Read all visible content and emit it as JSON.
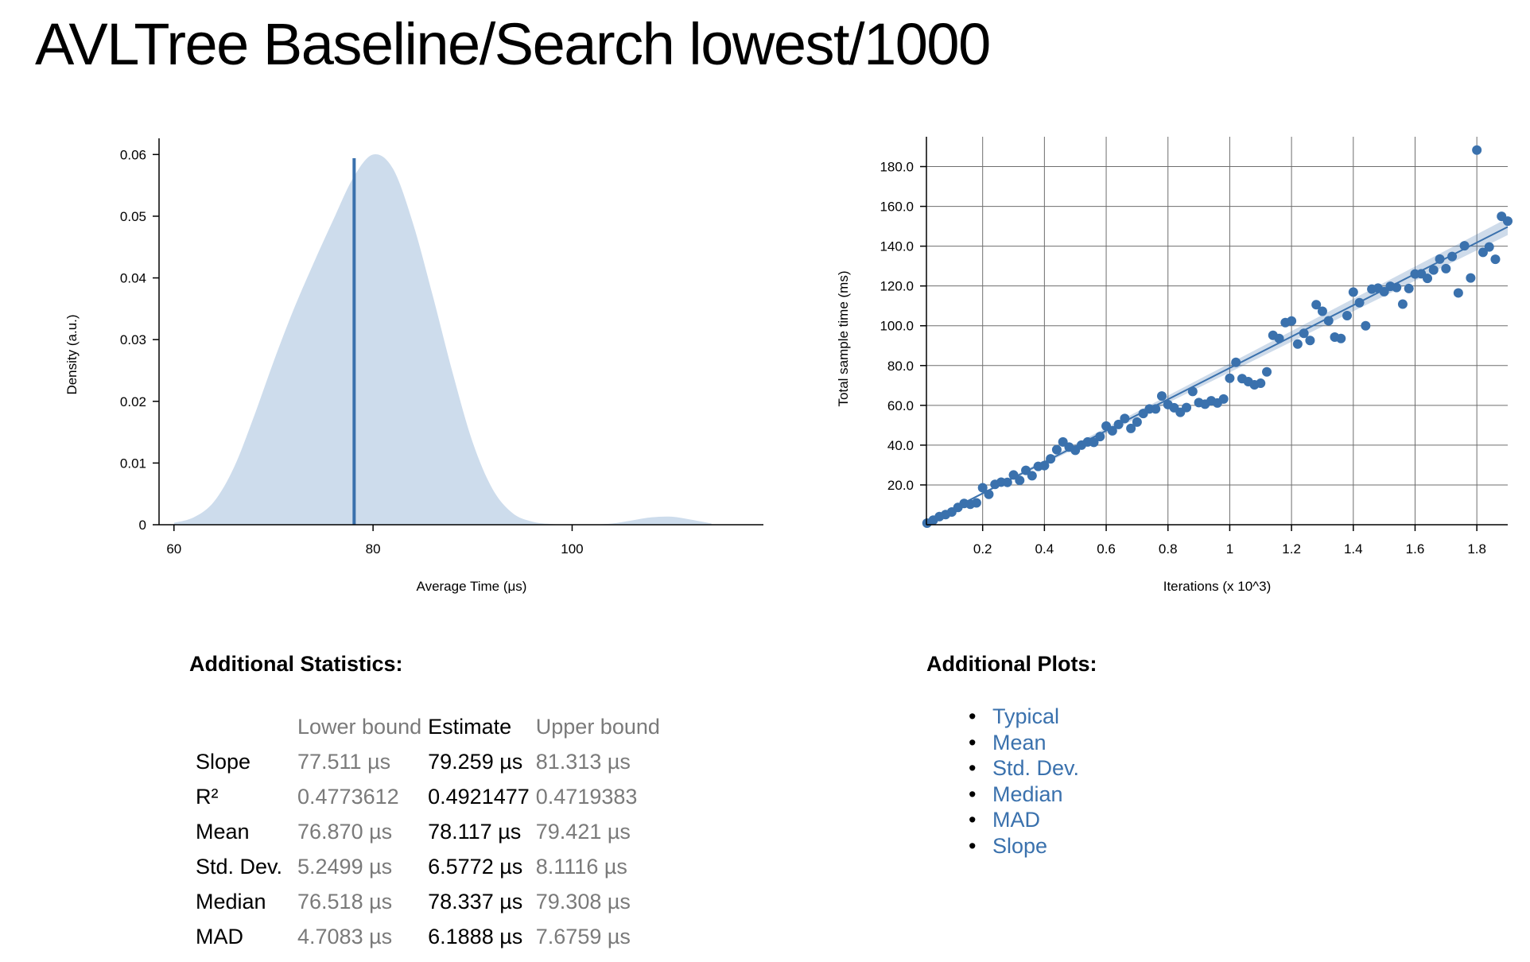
{
  "page": {
    "title": "AVLTree Baseline/Search lowest/1000"
  },
  "colors": {
    "accent": "#3a71ad",
    "density_fill": "#cddcec",
    "grid": "#6e6e6e",
    "muted_text": "#7a7a7a"
  },
  "chart_data": [
    {
      "type": "area",
      "title": "",
      "xlabel": "Average Time (μs)",
      "ylabel": "Density (a.u.)",
      "xlim": [
        58.5,
        116.5
      ],
      "ylim": [
        0,
        0.0603
      ],
      "x_ticks": [
        60,
        80,
        100
      ],
      "y_ticks": [
        0,
        0.01,
        0.02,
        0.03,
        0.04,
        0.05,
        0.06
      ],
      "y_tick_labels": [
        "0",
        "0.01",
        "0.02",
        "0.03",
        "0.04",
        "0.05",
        "0.06"
      ],
      "x": [
        60,
        62,
        64,
        66,
        68,
        70,
        72,
        74,
        76,
        78,
        80,
        82,
        84,
        86,
        88,
        90,
        92,
        94,
        96,
        98,
        100,
        102,
        104,
        106,
        108,
        110,
        112,
        114
      ],
      "y": [
        0.0003,
        0.0012,
        0.0037,
        0.0092,
        0.0174,
        0.0264,
        0.0348,
        0.0423,
        0.0494,
        0.0562,
        0.06,
        0.0577,
        0.0489,
        0.0371,
        0.0246,
        0.0134,
        0.0058,
        0.0019,
        0.0005,
        0.0001,
        0,
        0,
        0.0002,
        0.0007,
        0.0012,
        0.0013,
        0.0008,
        0.0002
      ],
      "mean_line": {
        "x": 78.1,
        "y": 0.0594
      },
      "grid": false
    },
    {
      "type": "scatter",
      "title": "",
      "xlabel": "Iterations (x 10^3)",
      "ylabel": "Total sample time (ms)",
      "xlim": [
        0.018,
        1.9
      ],
      "ylim": [
        0,
        187
      ],
      "x_ticks": [
        0.2,
        0.4,
        0.6,
        0.8,
        1.0,
        1.2,
        1.4,
        1.6,
        1.8
      ],
      "x_tick_labels": [
        "0.2",
        "0.4",
        "0.6",
        "0.8",
        "1",
        "1.2",
        "1.4",
        "1.6",
        "1.8"
      ],
      "y_ticks": [
        20,
        40,
        60,
        80,
        100,
        120,
        140,
        160,
        180
      ],
      "y_tick_labels": [
        "20.0",
        "40.0",
        "60.0",
        "80.0",
        "100.0",
        "120.0",
        "140.0",
        "160.0",
        "180.0"
      ],
      "grid": true,
      "points": [
        [
          0.02,
          0.8
        ],
        [
          0.04,
          2.3
        ],
        [
          0.06,
          4.1
        ],
        [
          0.08,
          5.1
        ],
        [
          0.1,
          6.4
        ],
        [
          0.12,
          8.7
        ],
        [
          0.14,
          10.7
        ],
        [
          0.16,
          10.3
        ],
        [
          0.18,
          11.0
        ],
        [
          0.2,
          18.6
        ],
        [
          0.22,
          15.3
        ],
        [
          0.24,
          20.3
        ],
        [
          0.26,
          21.4
        ],
        [
          0.28,
          21.3
        ],
        [
          0.3,
          25.0
        ],
        [
          0.32,
          22.3
        ],
        [
          0.34,
          27.3
        ],
        [
          0.36,
          24.6
        ],
        [
          0.38,
          29.3
        ],
        [
          0.4,
          29.7
        ],
        [
          0.42,
          33.1
        ],
        [
          0.44,
          37.7
        ],
        [
          0.46,
          41.6
        ],
        [
          0.48,
          39.0
        ],
        [
          0.5,
          37.4
        ],
        [
          0.52,
          40.0
        ],
        [
          0.54,
          41.6
        ],
        [
          0.56,
          41.4
        ],
        [
          0.58,
          44.3
        ],
        [
          0.6,
          49.6
        ],
        [
          0.62,
          47.2
        ],
        [
          0.64,
          50.4
        ],
        [
          0.66,
          53.4
        ],
        [
          0.68,
          48.4
        ],
        [
          0.7,
          51.6
        ],
        [
          0.72,
          55.9
        ],
        [
          0.74,
          58.2
        ],
        [
          0.76,
          58.2
        ],
        [
          0.78,
          64.7
        ],
        [
          0.8,
          60.4
        ],
        [
          0.82,
          58.8
        ],
        [
          0.84,
          56.5
        ],
        [
          0.86,
          58.9
        ],
        [
          0.88,
          67.0
        ],
        [
          0.9,
          61.4
        ],
        [
          0.92,
          60.6
        ],
        [
          0.94,
          62.3
        ],
        [
          0.96,
          61.2
        ],
        [
          0.98,
          63.2
        ],
        [
          1.0,
          73.6
        ],
        [
          1.02,
          81.6
        ],
        [
          1.04,
          73.4
        ],
        [
          1.06,
          71.9
        ],
        [
          1.08,
          70.3
        ],
        [
          1.1,
          71.1
        ],
        [
          1.12,
          76.8
        ],
        [
          1.14,
          95.2
        ],
        [
          1.16,
          93.6
        ],
        [
          1.18,
          101.6
        ],
        [
          1.2,
          102.4
        ],
        [
          1.22,
          90.8
        ],
        [
          1.24,
          96.2
        ],
        [
          1.26,
          92.6
        ],
        [
          1.28,
          110.6
        ],
        [
          1.3,
          107.3
        ],
        [
          1.32,
          102.5
        ],
        [
          1.34,
          94.3
        ],
        [
          1.36,
          93.6
        ],
        [
          1.38,
          105.1
        ],
        [
          1.4,
          116.9
        ],
        [
          1.42,
          111.6
        ],
        [
          1.44,
          100.0
        ],
        [
          1.46,
          118.4
        ],
        [
          1.48,
          118.9
        ],
        [
          1.5,
          117.1
        ],
        [
          1.52,
          119.8
        ],
        [
          1.54,
          119.2
        ],
        [
          1.56,
          110.9
        ],
        [
          1.58,
          118.7
        ],
        [
          1.6,
          126.0
        ],
        [
          1.62,
          126.1
        ],
        [
          1.64,
          123.8
        ],
        [
          1.66,
          128.0
        ],
        [
          1.68,
          133.5
        ],
        [
          1.7,
          128.7
        ],
        [
          1.72,
          134.8
        ],
        [
          1.74,
          116.5
        ],
        [
          1.76,
          140.2
        ],
        [
          1.78,
          124.0
        ],
        [
          1.8,
          188.3
        ],
        [
          1.82,
          136.9
        ],
        [
          1.84,
          139.6
        ],
        [
          1.86,
          133.4
        ],
        [
          1.88,
          155.0
        ],
        [
          1.9,
          152.6
        ]
      ],
      "fit": {
        "x": [
          0.018,
          1.9
        ],
        "y": [
          1.4,
          149.7
        ]
      },
      "confidence_band": {
        "x": [
          0.018,
          1.9
        ],
        "lower": [
          1.3,
          145.6
        ],
        "upper": [
          1.5,
          154.1
        ]
      }
    }
  ],
  "stats": {
    "heading": "Additional Statistics:",
    "columns": [
      "",
      "Lower bound",
      "Estimate",
      "Upper bound"
    ],
    "rows": [
      {
        "label": "Slope",
        "lower": "77.511 µs",
        "estimate": "79.259 µs",
        "upper": "81.313 µs"
      },
      {
        "label": "R²",
        "lower": "0.4773612",
        "estimate": "0.4921477",
        "upper": "0.4719383"
      },
      {
        "label": "Mean",
        "lower": "76.870 µs",
        "estimate": "78.117 µs",
        "upper": "79.421 µs"
      },
      {
        "label": "Std. Dev.",
        "lower": "5.2499 µs",
        "estimate": "6.5772 µs",
        "upper": "8.1116 µs"
      },
      {
        "label": "Median",
        "lower": "76.518 µs",
        "estimate": "78.337 µs",
        "upper": "79.308 µs"
      },
      {
        "label": "MAD",
        "lower": "4.7083 µs",
        "estimate": "6.1888 µs",
        "upper": "7.6759 µs"
      }
    ]
  },
  "plots": {
    "heading": "Additional Plots:",
    "links": [
      "Typical",
      "Mean",
      "Std. Dev.",
      "Median",
      "MAD",
      "Slope"
    ]
  }
}
